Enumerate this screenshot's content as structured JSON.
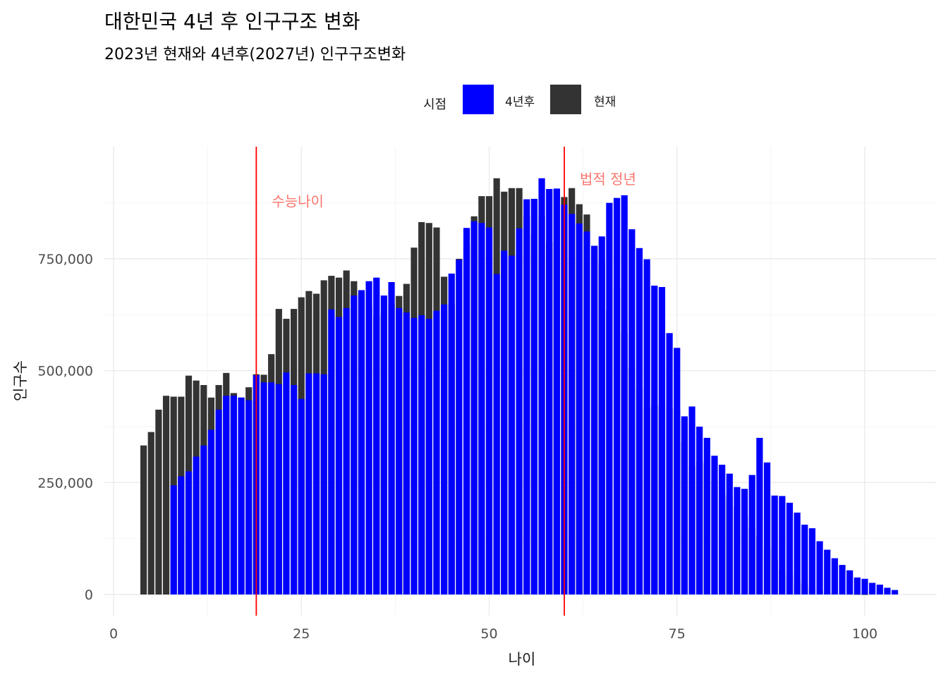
{
  "chart_data": {
    "type": "bar",
    "title": "대한민국 4년 후 인구구조 변화",
    "subtitle": "2023년 현재와 4년후(2027년) 인구구조변화",
    "xlabel": "나이",
    "ylabel": "인구수",
    "xlim": [
      0,
      105
    ],
    "ylim": [
      0,
      950000
    ],
    "x_ticks": [
      0,
      25,
      50,
      75,
      100
    ],
    "y_ticks": [
      0,
      250000,
      500000,
      750000
    ],
    "y_tick_labels": [
      "0",
      "250,000",
      "500,000",
      "750,000"
    ],
    "grid": true,
    "legend": {
      "title": "시점",
      "position": "top",
      "entries": [
        {
          "label": "4년후",
          "color": "#0000ff"
        },
        {
          "label": "현재",
          "color": "#333333"
        }
      ]
    },
    "series": [
      {
        "name": "현재",
        "color": "#333333",
        "x": [
          4,
          5,
          6,
          7,
          8,
          9,
          10,
          11,
          12,
          13,
          14,
          15,
          16,
          17,
          18,
          19,
          20,
          21,
          22,
          23,
          24,
          25,
          26,
          27,
          28,
          29,
          30,
          31,
          32,
          33,
          34,
          35,
          36,
          37,
          38,
          39,
          40,
          41,
          42,
          43,
          44,
          45,
          46,
          47,
          48,
          49,
          50,
          51,
          52,
          53,
          54,
          55,
          56,
          57,
          58,
          59,
          60,
          61,
          62,
          63,
          64,
          65,
          66,
          67,
          68,
          69,
          70,
          71,
          72,
          73,
          74,
          75,
          76,
          77,
          78,
          79,
          80,
          81,
          82,
          83,
          84,
          85,
          86,
          87,
          88,
          89,
          90,
          91,
          92,
          93,
          94,
          95,
          96,
          97,
          98,
          99,
          100
        ],
        "values": [
          333000,
          363000,
          413000,
          444000,
          442000,
          442000,
          489000,
          478000,
          468000,
          440000,
          468000,
          495000,
          450000,
          440000,
          463000,
          492000,
          491000,
          537000,
          638000,
          616000,
          638000,
          664000,
          678000,
          672000,
          702000,
          712000,
          708000,
          724000,
          700000,
          672000,
          642000,
          620000,
          628000,
          650000,
          667000,
          694000,
          775000,
          832000,
          830000,
          820000,
          710000,
          650000,
          750000,
          780000,
          845000,
          890000,
          890000,
          930000,
          900000,
          908000,
          908000,
          845000,
          804000,
          845000,
          787000,
          903000,
          888000,
          908000,
          872000,
          849000,
          779000,
          745000,
          636000,
          683000,
          583000,
          507000,
          461000,
          417000,
          423000,
          423000,
          417000,
          413000,
          340000,
          287000,
          298000,
          290000,
          253000,
          225000,
          218000,
          197000,
          177000,
          148000,
          129000,
          106000,
          76000,
          56000,
          45000,
          30000,
          24000,
          13000,
          8000,
          4000,
          3000,
          1500,
          800,
          400,
          100
        ]
      },
      {
        "name": "4년후",
        "color": "#0000ff",
        "x": [
          8,
          9,
          10,
          11,
          12,
          13,
          14,
          15,
          16,
          17,
          18,
          19,
          20,
          21,
          22,
          23,
          24,
          25,
          26,
          27,
          28,
          29,
          30,
          31,
          32,
          33,
          34,
          35,
          36,
          37,
          38,
          39,
          40,
          41,
          42,
          43,
          44,
          45,
          46,
          47,
          48,
          49,
          50,
          51,
          52,
          53,
          54,
          55,
          56,
          57,
          58,
          59,
          60,
          61,
          62,
          63,
          64,
          65,
          66,
          67,
          68,
          69,
          70,
          71,
          72,
          73,
          74,
          75,
          76,
          77,
          78,
          79,
          80,
          81,
          82,
          83,
          84,
          85,
          86,
          87,
          88,
          89,
          90,
          91,
          92,
          93,
          94,
          95,
          96,
          97,
          98,
          99,
          100,
          101,
          102,
          103,
          104
        ],
        "values": [
          244000,
          264000,
          275000,
          308000,
          333000,
          368000,
          413000,
          444000,
          444000,
          440000,
          434000,
          490000,
          474000,
          474000,
          470000,
          496000,
          468000,
          437000,
          494000,
          494000,
          492000,
          637000,
          620000,
          640000,
          668000,
          680000,
          700000,
          708000,
          668000,
          698000,
          640000,
          630000,
          618000,
          624000,
          616000,
          634000,
          648000,
          717000,
          748000,
          819000,
          834000,
          830000,
          820000,
          716000,
          768000,
          757000,
          818000,
          883000,
          884000,
          930000,
          906000,
          907000,
          871000,
          850000,
          829000,
          811000,
          779000,
          800000,
          875000,
          886000,
          892000,
          816000,
          774000,
          749000,
          690000,
          687000,
          584000,
          551000,
          398000,
          420000,
          375000,
          350000,
          310000,
          290000,
          270000,
          240000,
          236000,
          267000,
          350000,
          295000,
          221000,
          220000,
          205000,
          183000,
          156000,
          148000,
          119000,
          100000,
          81000,
          66000,
          54000,
          38000,
          35000,
          26000,
          22000,
          15000,
          10000
        ]
      }
    ],
    "annotations": [
      {
        "label": "수능나이",
        "x": 19,
        "y": 880000
      },
      {
        "label": "법적 정년",
        "x": 60,
        "y": 930000
      }
    ],
    "reference_lines": [
      {
        "x": 19,
        "color": "#ff0000"
      },
      {
        "x": 60,
        "color": "#ff0000"
      }
    ]
  }
}
